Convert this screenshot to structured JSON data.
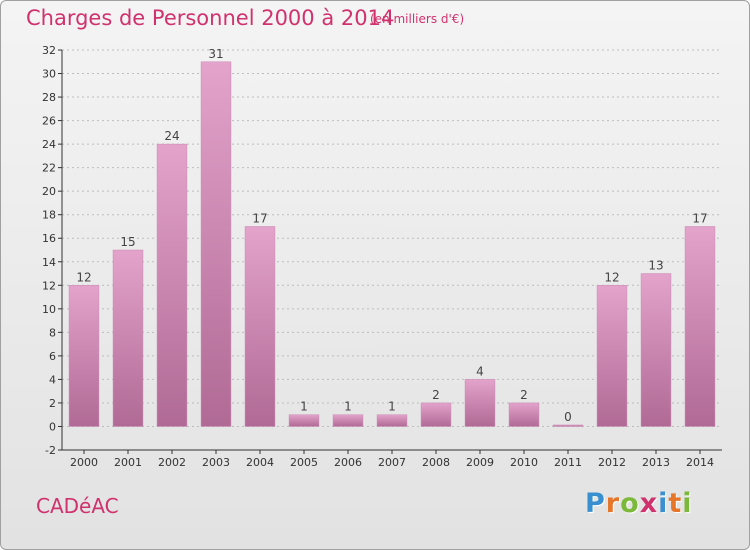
{
  "title": "Charges de Personnel 2000 à 2014",
  "subtitle": "(en milliers d'€)",
  "commune": "CADéAC",
  "logo": {
    "text": "Proxiti",
    "letters": [
      {
        "char": "P",
        "color": "#3a8fd0"
      },
      {
        "char": "r",
        "color": "#e5762a"
      },
      {
        "char": "o",
        "color": "#7cb83a"
      },
      {
        "char": "x",
        "color": "#d0326e"
      },
      {
        "char": "i",
        "color": "#3a8fd0"
      },
      {
        "char": "t",
        "color": "#e5762a"
      },
      {
        "char": "i",
        "color": "#7cb83a"
      }
    ]
  },
  "colors": {
    "accent": "#d0326e",
    "bar_top": "#e3a3cb",
    "bar_bottom": "#b06a95",
    "axis": "#333333",
    "grid": "#bdbdbd"
  },
  "chart_data": {
    "type": "bar",
    "categories": [
      "2000",
      "2001",
      "2002",
      "2003",
      "2004",
      "2005",
      "2006",
      "2007",
      "2008",
      "2009",
      "2010",
      "2011",
      "2012",
      "2013",
      "2014"
    ],
    "values": [
      12,
      15,
      24,
      31,
      17,
      1,
      1,
      1,
      2,
      4,
      2,
      0,
      12,
      13,
      17
    ],
    "data_labels": [
      "12",
      "15",
      "24",
      "31",
      "17",
      "1",
      "1",
      "1",
      "2",
      "4",
      "2",
      "0",
      "12",
      "13",
      "17"
    ],
    "ylim": [
      -2,
      32
    ],
    "yticks": [
      "-2",
      "0",
      "2",
      "4",
      "6",
      "8",
      "10",
      "12",
      "14",
      "16",
      "18",
      "20",
      "22",
      "24",
      "26",
      "28",
      "30",
      "32"
    ],
    "grid": true,
    "legend": "none"
  }
}
